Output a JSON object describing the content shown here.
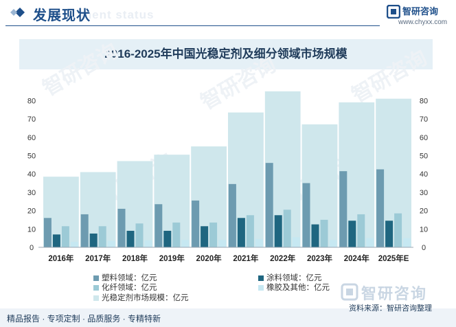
{
  "header": {
    "title": "发展现状",
    "title_en": "ment status",
    "brand": "智研咨询",
    "url": "www.chyxx.com"
  },
  "footer": {
    "services": "精品报告 · 专项定制 · 品质服务 · 专精特新",
    "source": "资料来源：智研咨询整理",
    "watermark": "智研咨询"
  },
  "colors": {
    "market": "#cfe7ec",
    "plastic": "#6d9bb0",
    "coating": "#1f6680",
    "fiber": "#9ccad6",
    "rubber": "#c6e8f2"
  },
  "chart_data": {
    "type": "bar",
    "title": "2016-2025年中国光稳定剂及细分领域市场规模",
    "categories": [
      "2016年",
      "2017年",
      "2018年",
      "2019年",
      "2020年",
      "2021年",
      "2022年",
      "2023年",
      "2024年",
      "2025年E"
    ],
    "ylim": [
      0,
      85
    ],
    "yticks": [
      0,
      10,
      20,
      30,
      40,
      50,
      60,
      70,
      80
    ],
    "grid": false,
    "legend_position": "bottom",
    "series": [
      {
        "name": "光稳定剂市场规模：亿元",
        "key": "market",
        "values": [
          38.5,
          41,
          47,
          50.5,
          55,
          73.5,
          85,
          67,
          79,
          81
        ]
      },
      {
        "name": "塑料领域：亿元",
        "key": "plastic",
        "values": [
          16,
          18,
          21,
          23.5,
          25.5,
          34.5,
          46,
          35,
          41.5,
          42.5
        ]
      },
      {
        "name": "涂料领域：亿元",
        "key": "coating",
        "values": [
          7,
          7.5,
          9,
          9,
          11.5,
          16,
          17.5,
          12.5,
          14.5,
          14.5
        ]
      },
      {
        "name": "化纤领域：亿元",
        "key": "fiber",
        "values": [
          11.5,
          11.5,
          13,
          13.5,
          13.5,
          17.5,
          20.5,
          15,
          18,
          18.5
        ]
      },
      {
        "name": "橡胶及其他：亿元",
        "key": "rubber",
        "values": [
          3,
          3.5,
          3.8,
          4,
          4,
          4.5,
          5.5,
          4,
          5,
          5
        ]
      }
    ]
  }
}
